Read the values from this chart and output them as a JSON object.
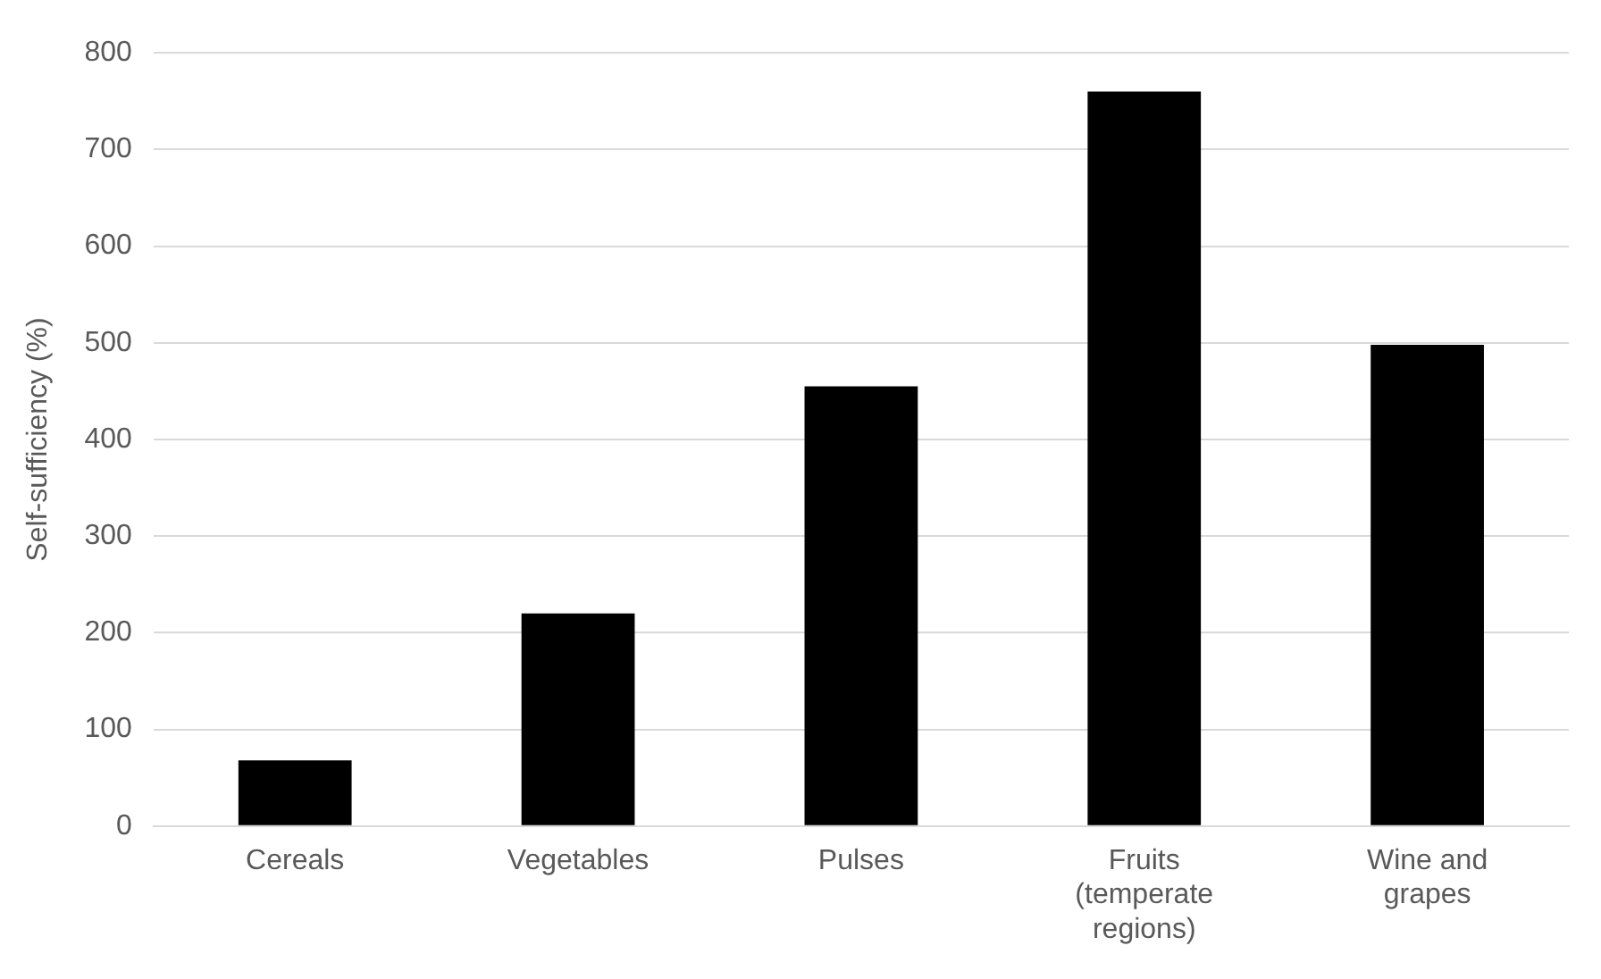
{
  "chart_data": {
    "type": "bar",
    "ylabel": "Self-sufficiency (%)",
    "categories": [
      "Cereals",
      "Vegetables",
      "Pulses",
      "Fruits (temperate regions)",
      "Wine and grapes"
    ],
    "values": [
      68,
      220,
      455,
      760,
      498
    ],
    "color": "#000000",
    "ylim": [
      0,
      800
    ],
    "yticks": [
      0,
      100,
      200,
      300,
      400,
      500,
      600,
      700,
      800
    ],
    "grid": "y",
    "legend": false
  }
}
